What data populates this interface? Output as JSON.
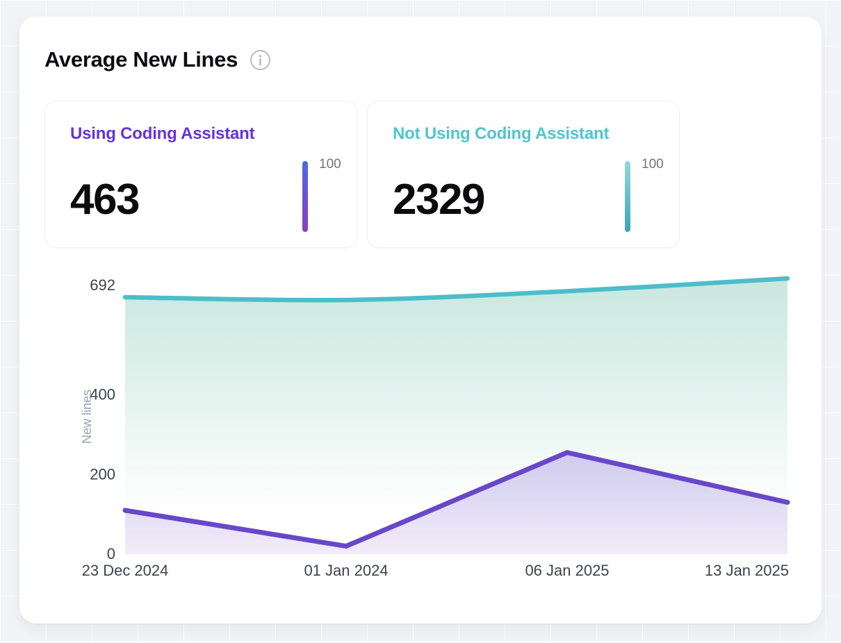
{
  "header": {
    "title": "Average New Lines"
  },
  "stats": [
    {
      "label": "Using Coding Assistant",
      "value": "463",
      "scale_max": "100",
      "accent": "#6332e4",
      "bar_top": "#4a6ae9",
      "bar_bottom": "#8a3ec0"
    },
    {
      "label": "Not Using Coding Assistant",
      "value": "2329",
      "scale_max": "100",
      "accent": "#4ec5ce",
      "bar_top": "#91dade",
      "bar_bottom": "#3ca5b7"
    }
  ],
  "chart_data": {
    "type": "area",
    "title": "Average New Lines",
    "x_labels": [
      "23 Dec 2024",
      "01 Jan 2024",
      "06 Jan 2025",
      "13 Jan 2025"
    ],
    "series": [
      {
        "name": "Not Using Coding Assistant",
        "color": "#4bbecb",
        "fill_top": "#c9e7de",
        "fill_bottom": "#ffffff",
        "smooth": true,
        "values": [
          645,
          638,
          660,
          692
        ]
      },
      {
        "name": "Using Coding Assistant",
        "color": "#6847c9",
        "fill_top": "#cecbee",
        "fill_bottom": "#f2ecf9",
        "smooth": false,
        "values": [
          110,
          20,
          255,
          130
        ]
      }
    ],
    "ylabel": "New lines",
    "xlabel": "",
    "yticks": [
      0,
      200,
      400,
      692
    ],
    "ylim": [
      0,
      692
    ],
    "grid": false,
    "legend": "none"
  }
}
